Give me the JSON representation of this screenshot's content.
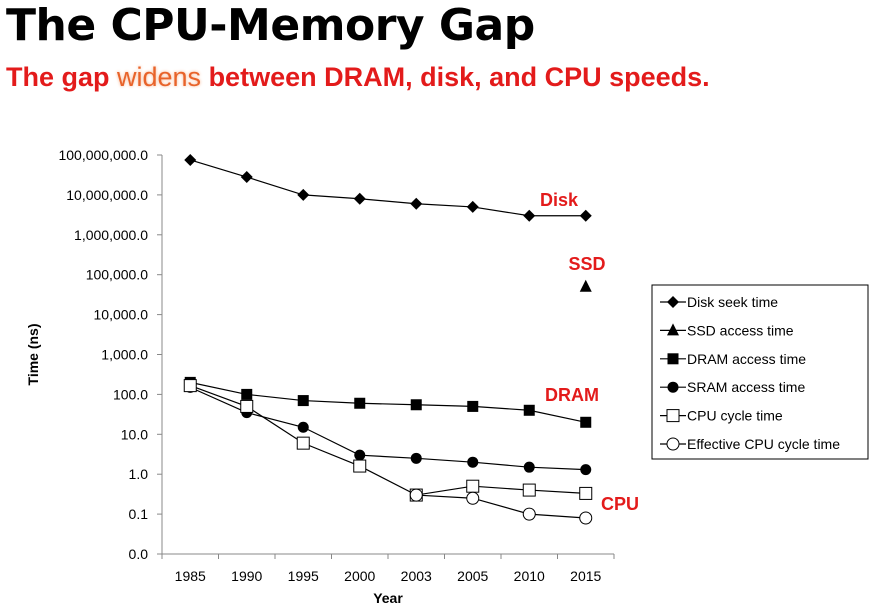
{
  "slide": {
    "title": "The CPU-Memory Gap",
    "subtitle_before": "The gap ",
    "subtitle_highlight": "widens",
    "subtitle_after": " between DRAM, disk, and CPU speeds."
  },
  "chart_data": {
    "type": "line",
    "xlabel": "Year",
    "ylabel": "Time (ns)",
    "yscale": "log",
    "categories": [
      "1985",
      "1990",
      "1995",
      "2000",
      "2003",
      "2005",
      "2010",
      "2015"
    ],
    "yticks": [
      {
        "value": 0.01,
        "label": "0.0"
      },
      {
        "value": 0.1,
        "label": "0.1"
      },
      {
        "value": 1,
        "label": "1.0"
      },
      {
        "value": 10,
        "label": "10.0"
      },
      {
        "value": 100,
        "label": "100.0"
      },
      {
        "value": 1000,
        "label": "1,000.0"
      },
      {
        "value": 10000,
        "label": "10,000.0"
      },
      {
        "value": 100000,
        "label": "100,000.0"
      },
      {
        "value": 1000000,
        "label": "1,000,000.0"
      },
      {
        "value": 10000000,
        "label": "10,000,000.0"
      },
      {
        "value": 100000000,
        "label": "100,000,000.0"
      }
    ],
    "ylim": [
      0.01,
      100000000
    ],
    "grid": false,
    "legend_position": "right",
    "series": [
      {
        "name": "Disk seek time",
        "marker": "diamond",
        "values": [
          75000000,
          28000000,
          10000000,
          8000000,
          6000000,
          5000000,
          3000000,
          3000000
        ]
      },
      {
        "name": "SSD access time",
        "marker": "triangle",
        "values": [
          null,
          null,
          null,
          null,
          null,
          null,
          null,
          50000
        ]
      },
      {
        "name": "DRAM access time",
        "marker": "square",
        "values": [
          200,
          100,
          70,
          60,
          55,
          50,
          40,
          20
        ]
      },
      {
        "name": "SRAM access time",
        "marker": "circle",
        "values": [
          150,
          35,
          15,
          3,
          2.5,
          2,
          1.5,
          1.3
        ]
      },
      {
        "name": "CPU cycle time",
        "marker": "open-square",
        "values": [
          166,
          50,
          6,
          1.6,
          0.3,
          0.5,
          0.4,
          0.33
        ]
      },
      {
        "name": "Effective CPU cycle time",
        "marker": "open-circle",
        "values": [
          null,
          null,
          null,
          null,
          0.3,
          0.25,
          0.1,
          0.08
        ]
      }
    ],
    "annotations": [
      {
        "text": "Disk",
        "series": "Disk seek time"
      },
      {
        "text": "SSD",
        "series": "SSD access time"
      },
      {
        "text": "DRAM",
        "series": "DRAM access time"
      },
      {
        "text": "CPU",
        "series": "CPU cycle time"
      }
    ],
    "annotation_color": "#e31b1b"
  }
}
